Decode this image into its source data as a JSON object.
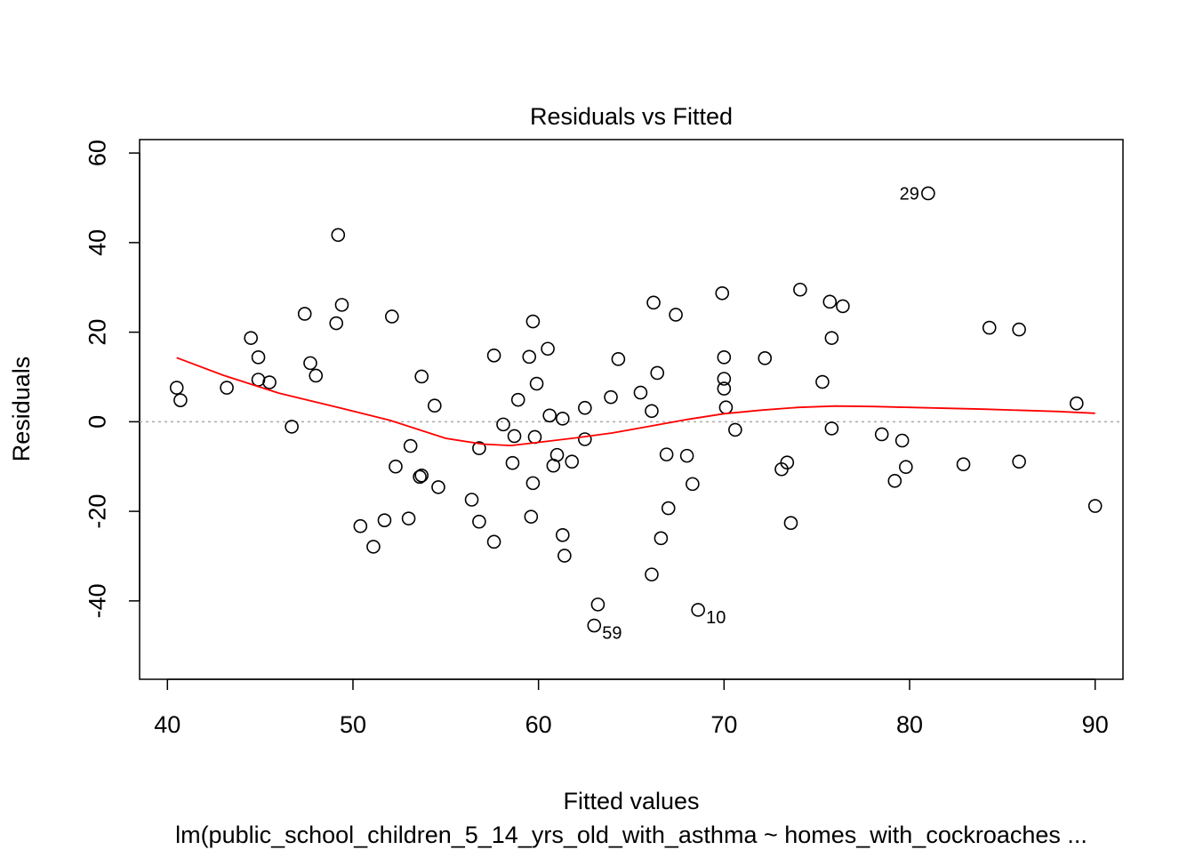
{
  "chart_data": {
    "type": "scatter",
    "title": "Residuals vs Fitted",
    "xlabel": "Fitted values",
    "ylabel": "Residuals",
    "caption": "lm(public_school_children_5_14_yrs_old_with_asthma ~ homes_with_cockroaches ...",
    "xlim": [
      38.5,
      91.5
    ],
    "ylim": [
      -57.5,
      63
    ],
    "xticks": [
      40,
      50,
      60,
      70,
      80,
      90
    ],
    "yticks": [
      -40,
      -20,
      0,
      20,
      40,
      60
    ],
    "xtick_labels": [
      "40",
      "50",
      "60",
      "70",
      "80",
      "90"
    ],
    "ytick_labels": [
      "-40",
      "-20",
      "0",
      "20",
      "40",
      "60"
    ],
    "reference_line": {
      "y": 0,
      "style": "dotted",
      "color": "#aaaaaa"
    },
    "points": [
      {
        "x": 40.5,
        "y": 7.6
      },
      {
        "x": 40.7,
        "y": 4.8
      },
      {
        "x": 43.2,
        "y": 7.6
      },
      {
        "x": 44.5,
        "y": 18.7
      },
      {
        "x": 44.9,
        "y": 14.4
      },
      {
        "x": 44.9,
        "y": 9.4
      },
      {
        "x": 45.5,
        "y": 8.8
      },
      {
        "x": 46.7,
        "y": -1.1
      },
      {
        "x": 47.4,
        "y": 24.1
      },
      {
        "x": 47.7,
        "y": 13.1
      },
      {
        "x": 48.0,
        "y": 10.3
      },
      {
        "x": 49.1,
        "y": 22.0
      },
      {
        "x": 49.2,
        "y": 41.7
      },
      {
        "x": 49.4,
        "y": 26.1
      },
      {
        "x": 50.4,
        "y": -23.3
      },
      {
        "x": 51.1,
        "y": -27.9
      },
      {
        "x": 51.7,
        "y": -22.0
      },
      {
        "x": 52.1,
        "y": 23.5
      },
      {
        "x": 52.3,
        "y": -10.0
      },
      {
        "x": 53.0,
        "y": -21.6
      },
      {
        "x": 53.1,
        "y": -5.4
      },
      {
        "x": 53.6,
        "y": -12.3
      },
      {
        "x": 53.7,
        "y": 10.1
      },
      {
        "x": 53.7,
        "y": -12.0
      },
      {
        "x": 54.4,
        "y": 3.6
      },
      {
        "x": 54.6,
        "y": -14.6
      },
      {
        "x": 56.4,
        "y": -17.4
      },
      {
        "x": 56.8,
        "y": -5.9
      },
      {
        "x": 56.8,
        "y": -22.3
      },
      {
        "x": 57.6,
        "y": -26.8
      },
      {
        "x": 57.6,
        "y": 14.8
      },
      {
        "x": 58.1,
        "y": -0.6
      },
      {
        "x": 58.6,
        "y": -9.2
      },
      {
        "x": 58.7,
        "y": -3.2
      },
      {
        "x": 58.9,
        "y": 4.9
      },
      {
        "x": 59.5,
        "y": 14.5
      },
      {
        "x": 59.6,
        "y": -21.2
      },
      {
        "x": 59.7,
        "y": -13.7
      },
      {
        "x": 59.7,
        "y": 22.4
      },
      {
        "x": 59.8,
        "y": -3.4
      },
      {
        "x": 59.9,
        "y": 8.5
      },
      {
        "x": 60.5,
        "y": 16.3
      },
      {
        "x": 60.6,
        "y": 1.4
      },
      {
        "x": 60.8,
        "y": -9.8
      },
      {
        "x": 61.0,
        "y": -7.4
      },
      {
        "x": 61.3,
        "y": 0.7
      },
      {
        "x": 61.3,
        "y": -25.3
      },
      {
        "x": 61.4,
        "y": -29.9
      },
      {
        "x": 61.8,
        "y": -8.9
      },
      {
        "x": 62.5,
        "y": -3.9
      },
      {
        "x": 62.5,
        "y": 3.1
      },
      {
        "x": 63.0,
        "y": -45.5
      },
      {
        "x": 63.2,
        "y": -40.8
      },
      {
        "x": 63.9,
        "y": 5.5
      },
      {
        "x": 64.3,
        "y": 14.0
      },
      {
        "x": 65.5,
        "y": 6.5
      },
      {
        "x": 66.1,
        "y": 2.4
      },
      {
        "x": 66.1,
        "y": -34.1
      },
      {
        "x": 66.2,
        "y": 26.6
      },
      {
        "x": 66.4,
        "y": 10.9
      },
      {
        "x": 66.6,
        "y": -26.0
      },
      {
        "x": 66.9,
        "y": -7.3
      },
      {
        "x": 67.0,
        "y": -19.3
      },
      {
        "x": 67.4,
        "y": 23.9
      },
      {
        "x": 68.0,
        "y": -7.6
      },
      {
        "x": 68.3,
        "y": -13.9
      },
      {
        "x": 68.6,
        "y": -42.0
      },
      {
        "x": 69.9,
        "y": 28.7
      },
      {
        "x": 70.0,
        "y": 14.4
      },
      {
        "x": 70.0,
        "y": 9.6
      },
      {
        "x": 70.0,
        "y": 7.4
      },
      {
        "x": 70.1,
        "y": 3.2
      },
      {
        "x": 70.6,
        "y": -1.8
      },
      {
        "x": 72.2,
        "y": 14.2
      },
      {
        "x": 73.1,
        "y": -10.6
      },
      {
        "x": 73.4,
        "y": -9.1
      },
      {
        "x": 73.6,
        "y": -22.6
      },
      {
        "x": 74.1,
        "y": 29.5
      },
      {
        "x": 75.3,
        "y": 8.9
      },
      {
        "x": 75.7,
        "y": 26.8
      },
      {
        "x": 75.8,
        "y": 18.7
      },
      {
        "x": 75.8,
        "y": -1.5
      },
      {
        "x": 76.4,
        "y": 25.8
      },
      {
        "x": 78.5,
        "y": -2.8
      },
      {
        "x": 79.2,
        "y": -13.2
      },
      {
        "x": 79.6,
        "y": -4.2
      },
      {
        "x": 79.8,
        "y": -10.1
      },
      {
        "x": 81.0,
        "y": 51.0
      },
      {
        "x": 82.9,
        "y": -9.5
      },
      {
        "x": 84.3,
        "y": 21.0
      },
      {
        "x": 85.9,
        "y": 20.6
      },
      {
        "x": 85.9,
        "y": -8.9
      },
      {
        "x": 89.0,
        "y": 4.1
      },
      {
        "x": 90.0,
        "y": -18.8
      }
    ],
    "labeled_points": [
      {
        "label": "29",
        "x": 81.0,
        "y": 51.0,
        "side": "left"
      },
      {
        "label": "59",
        "x": 63.0,
        "y": -45.5,
        "side": "right"
      },
      {
        "label": "10",
        "x": 68.6,
        "y": -42.0,
        "side": "right"
      }
    ],
    "smooth_line": {
      "color": "#ff0000",
      "x": [
        40.5,
        43,
        46,
        49,
        52,
        55,
        57,
        58.5,
        60,
        62,
        64,
        66,
        68,
        70,
        72,
        74,
        76,
        78,
        80,
        84,
        88,
        90
      ],
      "y": [
        14.3,
        10.4,
        6.4,
        3.4,
        0.3,
        -3.7,
        -5.0,
        -5.3,
        -4.6,
        -3.6,
        -2.5,
        -1.0,
        0.5,
        1.8,
        2.6,
        3.2,
        3.5,
        3.4,
        3.2,
        2.8,
        2.3,
        1.9
      ]
    }
  }
}
